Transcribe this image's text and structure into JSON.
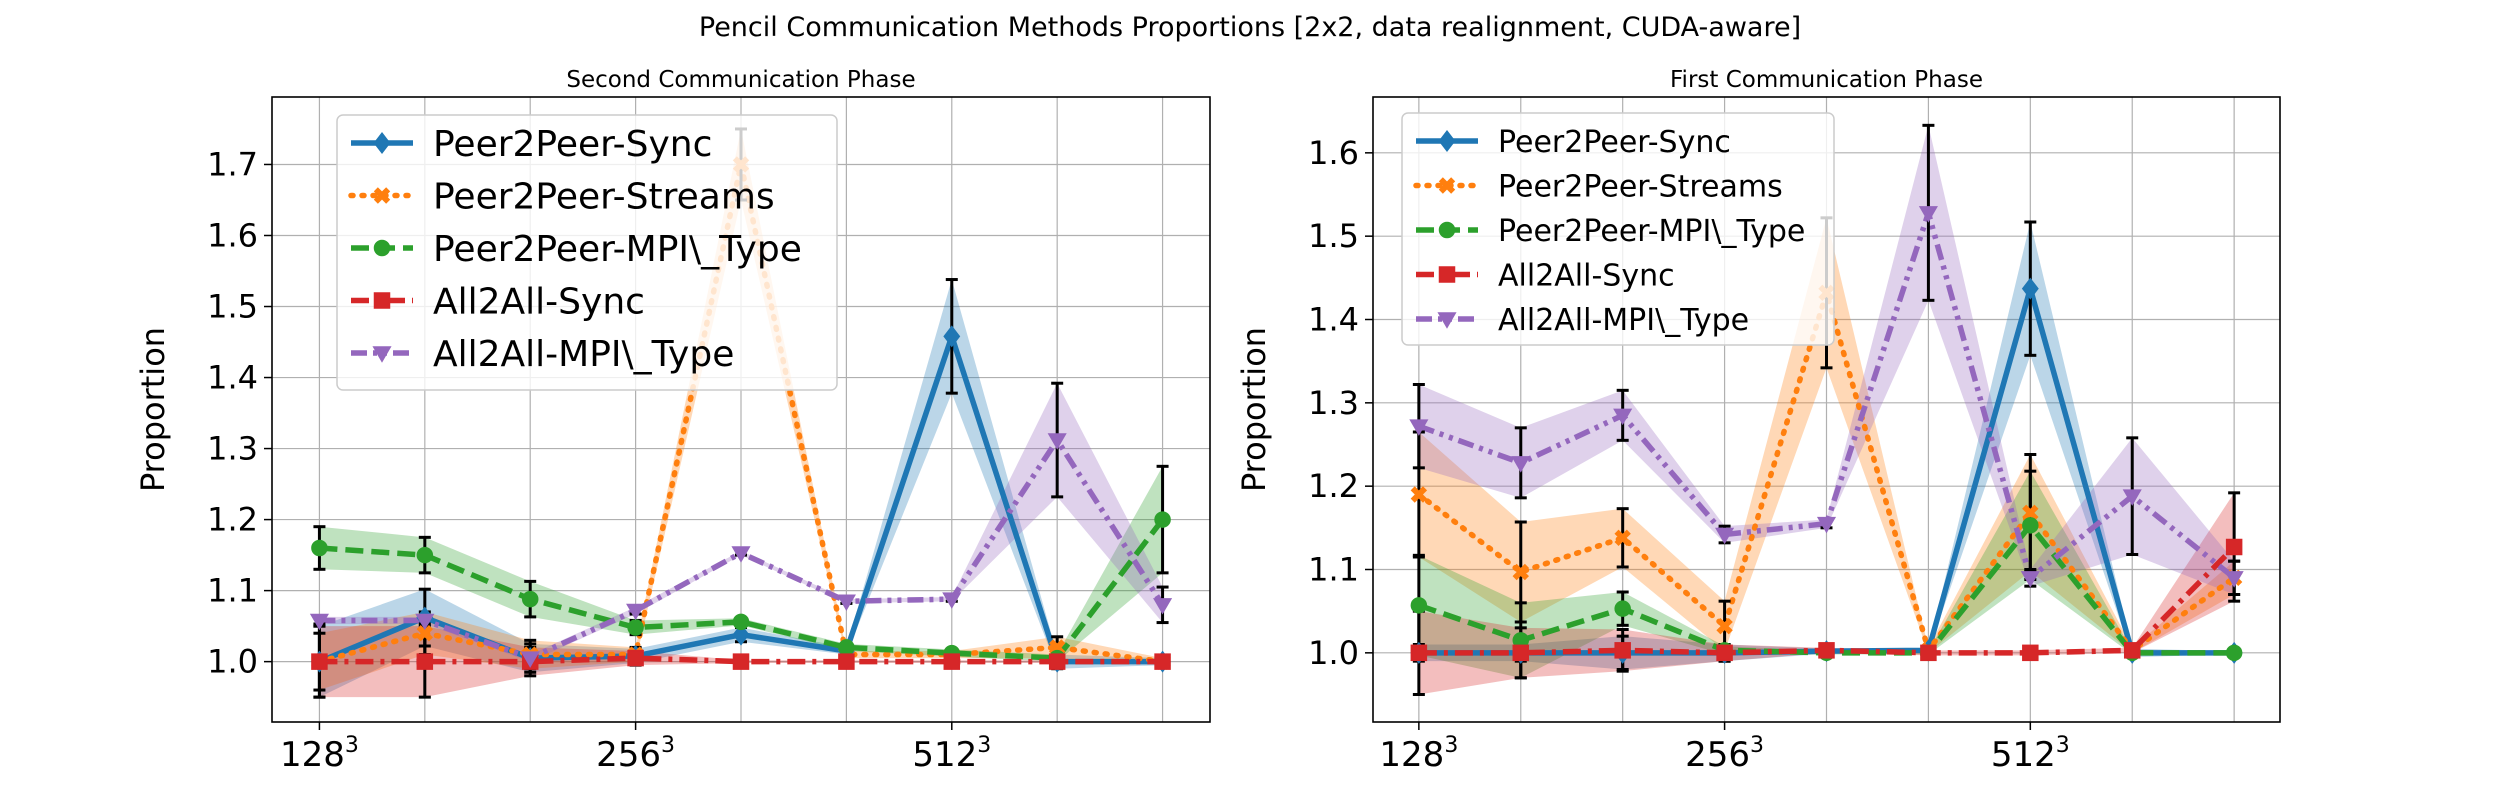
{
  "figure": {
    "title": "Pencil Communication Methods Proportions [2x2, data realignment, CUDA-aware]"
  },
  "colors": {
    "Peer2Peer-Sync": "#1f77b4",
    "Peer2Peer-Streams": "#ff7f0e",
    "Peer2Peer-MPI\\_Type": "#2ca02c",
    "All2All-Sync": "#d62728",
    "All2All-MPI\\_Type": "#9467bd"
  },
  "chart_data": [
    {
      "type": "line",
      "title": "Second Communication Phase",
      "xlabel": "",
      "ylabel": "Proportion",
      "x": [
        0,
        1,
        2,
        3,
        4,
        5,
        6,
        7,
        8
      ],
      "xticks": [
        {
          "x": 0,
          "base": "128",
          "exp": "3"
        },
        {
          "x": 3,
          "base": "256",
          "exp": "3"
        },
        {
          "x": 6,
          "base": "512",
          "exp": "3"
        }
      ],
      "yticks": [
        "1.0",
        "1.1",
        "1.2",
        "1.3",
        "1.4",
        "1.5",
        "1.6",
        "1.7"
      ],
      "ylim": [
        0.915,
        1.795
      ],
      "grid": true,
      "legend_position": "top-left",
      "series": [
        {
          "name": "Peer2Peer-Sync",
          "linestyle": "solid",
          "marker": "diamond",
          "values": [
            1.0,
            1.062,
            1.005,
            1.008,
            1.038,
            1.015,
            1.458,
            1.0,
            1.0
          ],
          "errors": [
            0.05,
            0.04,
            0.02,
            0.01,
            0.01,
            0.005,
            0.08,
            0.01,
            0.005
          ]
        },
        {
          "name": "Peer2Peer-Streams",
          "linestyle": "dotted",
          "marker": "x",
          "values": [
            1.0,
            1.04,
            1.01,
            1.01,
            1.7,
            1.01,
            1.01,
            1.02,
            1.0
          ],
          "errors": [
            0.04,
            0.03,
            0.02,
            0.01,
            0.05,
            0.005,
            0.005,
            0.015,
            0.005
          ]
        },
        {
          "name": "Peer2Peer-MPI\\_Type",
          "linestyle": "dashed",
          "marker": "circle",
          "values": [
            1.16,
            1.15,
            1.088,
            1.048,
            1.056,
            1.02,
            1.012,
            1.005,
            1.2
          ],
          "errors": [
            0.03,
            0.025,
            0.025,
            0.01,
            0.005,
            0.005,
            0.005,
            0.005,
            0.075
          ]
        },
        {
          "name": "All2All-Sync",
          "linestyle": "dashdot",
          "marker": "square",
          "values": [
            1.0,
            1.0,
            1.0,
            1.005,
            1.0,
            1.0,
            1.0,
            1.0,
            1.0
          ],
          "errors": [
            0.05,
            0.05,
            0.02,
            0.01,
            0.002,
            0.002,
            0.002,
            0.002,
            0.002
          ]
        },
        {
          "name": "All2All-MPI\\_Type",
          "linestyle": "dashdotdot",
          "marker": "triangle-down",
          "values": [
            1.058,
            1.058,
            1.005,
            1.072,
            1.153,
            1.085,
            1.088,
            1.312,
            1.08
          ],
          "errors": [
            0.005,
            0.005,
            0.005,
            0.005,
            0.003,
            0.003,
            0.003,
            0.08,
            0.025
          ]
        }
      ]
    },
    {
      "type": "line",
      "title": "First Communication Phase",
      "xlabel": "",
      "ylabel": "Proportion",
      "x": [
        0,
        1,
        2,
        3,
        4,
        5,
        6,
        7,
        8
      ],
      "xticks": [
        {
          "x": 0,
          "base": "128",
          "exp": "3"
        },
        {
          "x": 3,
          "base": "256",
          "exp": "3"
        },
        {
          "x": 6,
          "base": "512",
          "exp": "3"
        }
      ],
      "yticks": [
        "1.0",
        "1.1",
        "1.2",
        "1.3",
        "1.4",
        "1.5",
        "1.6"
      ],
      "ylim": [
        0.917,
        1.667
      ],
      "grid": true,
      "legend_position": "top-left",
      "series": [
        {
          "name": "Peer2Peer-Sync",
          "linestyle": "solid",
          "marker": "diamond",
          "values": [
            1.0,
            1.0,
            1.0,
            1.0,
            1.002,
            1.003,
            1.437,
            1.0,
            1.0
          ],
          "errors": [
            0.01,
            0.01,
            0.02,
            0.01,
            0.003,
            0.002,
            0.08,
            0.005,
            0.002
          ]
        },
        {
          "name": "Peer2Peer-Streams",
          "linestyle": "dotted",
          "marker": "x",
          "values": [
            1.19,
            1.097,
            1.138,
            1.032,
            1.432,
            1.003,
            1.168,
            1.003,
            1.09
          ],
          "errors": [
            0.075,
            0.06,
            0.035,
            0.03,
            0.09,
            0.003,
            0.07,
            0.003,
            0.02
          ]
        },
        {
          "name": "Peer2Peer-MPI\\_Type",
          "linestyle": "dashed",
          "marker": "circle",
          "values": [
            1.057,
            1.015,
            1.053,
            1.003,
            1.0,
            1.0,
            1.153,
            1.0,
            1.0
          ],
          "errors": [
            0.06,
            0.045,
            0.02,
            0.005,
            0.002,
            0.002,
            0.065,
            0.002,
            0.002
          ]
        },
        {
          "name": "All2All-Sync",
          "linestyle": "dashdot",
          "marker": "square",
          "values": [
            1.0,
            1.0,
            1.003,
            1.0,
            1.003,
            1.0,
            1.0,
            1.003,
            1.127
          ],
          "errors": [
            0.05,
            0.03,
            0.025,
            0.01,
            0.003,
            0.003,
            0.003,
            0.003,
            0.065
          ]
        },
        {
          "name": "All2All-MPI\\_Type",
          "linestyle": "dashdotdot",
          "marker": "triangle-down",
          "values": [
            1.272,
            1.228,
            1.285,
            1.142,
            1.155,
            1.528,
            1.09,
            1.188,
            1.09
          ],
          "errors": [
            0.05,
            0.042,
            0.03,
            0.01,
            0.005,
            0.105,
            0.01,
            0.07,
            0.02
          ]
        }
      ]
    }
  ]
}
